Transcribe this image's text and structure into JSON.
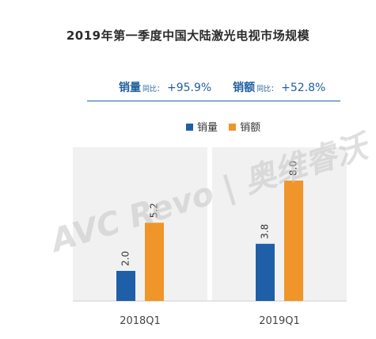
{
  "chart_data": {
    "type": "bar",
    "title": "2019年第一季度中国大陆激光电视市场规模",
    "categories": [
      "2018Q1",
      "2019Q1"
    ],
    "series": [
      {
        "name": "销量",
        "values": [
          2.0,
          3.8
        ],
        "color": "#1f5fa8"
      },
      {
        "name": "销额",
        "values": [
          5.2,
          8.0
        ],
        "color": "#f0952a"
      }
    ],
    "ylim": [
      0,
      10
    ],
    "grid": false,
    "legend_position": "top-center"
  },
  "growth": {
    "volume_label": "销量",
    "volume_sub": "同比：",
    "volume_value": "+95.9%",
    "revenue_label": "销额",
    "revenue_sub": "同比：",
    "revenue_value": "+52.8%"
  },
  "watermark": "AVC Revo | 奥维睿沃"
}
